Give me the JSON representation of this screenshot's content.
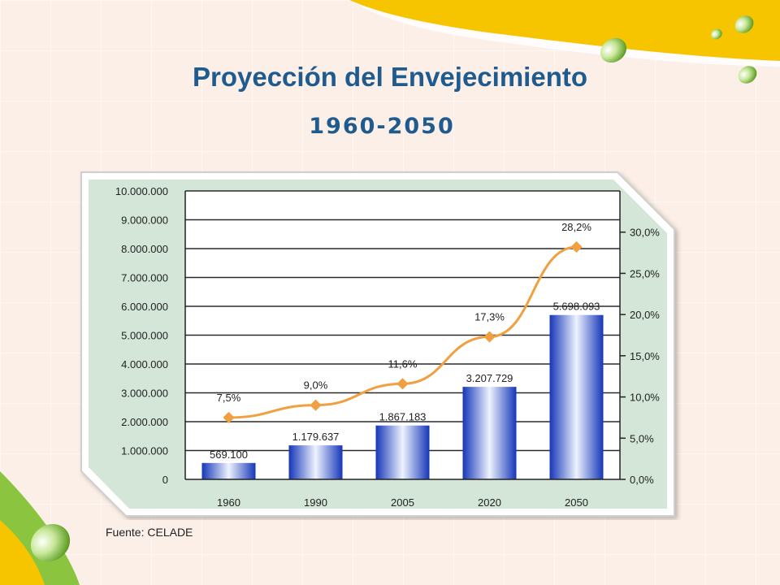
{
  "slide": {
    "title": "Proyección del Envejecimiento",
    "subtitle": "1960-2050",
    "source": "Fuente: CELADE"
  },
  "colors": {
    "title": "#1f5b8e",
    "bar": "#1538c2",
    "line": "#f0a040",
    "chart_bg": "#d3e6d8",
    "accent_yellow": "#f7c400",
    "accent_green": "#8bc53f"
  },
  "chart_data": {
    "type": "bar",
    "categories": [
      "1960",
      "1990",
      "2005",
      "2020",
      "2050"
    ],
    "series": [
      {
        "values": [
          569100,
          1179637,
          1867183,
          3207729,
          5698093
        ],
        "value_labels": [
          "569.100",
          "1.179.637",
          "1.867.183",
          "3.207.729",
          "5.698.093"
        ],
        "axis": "left",
        "mark": "bar"
      },
      {
        "values": [
          7.5,
          9.0,
          11.6,
          17.3,
          28.2
        ],
        "value_labels": [
          "7,5%",
          "9,0%",
          "11,6%",
          "17,3%",
          "28,2%"
        ],
        "axis": "right",
        "mark": "line"
      }
    ],
    "y_left": {
      "lim": [
        0,
        10000000
      ],
      "ticks": [
        0,
        1000000,
        2000000,
        3000000,
        4000000,
        5000000,
        6000000,
        7000000,
        8000000,
        9000000,
        10000000
      ],
      "tick_labels": [
        "0",
        "1.000.000",
        "2.000.000",
        "3.000.000",
        "4.000.000",
        "5.000.000",
        "6.000.000",
        "7.000.000",
        "8.000.000",
        "9.000.000",
        "10.000.000"
      ]
    },
    "y_right": {
      "lim": [
        0,
        35
      ],
      "ticks": [
        0,
        5,
        10,
        15,
        20,
        25,
        30
      ],
      "tick_labels": [
        "0,0%",
        "5,0%",
        "10,0%",
        "15,0%",
        "20,0%",
        "25,0%",
        "30,0%"
      ]
    },
    "grid": true,
    "legend": "none",
    "title": "",
    "xlabel": "",
    "ylabel": ""
  }
}
